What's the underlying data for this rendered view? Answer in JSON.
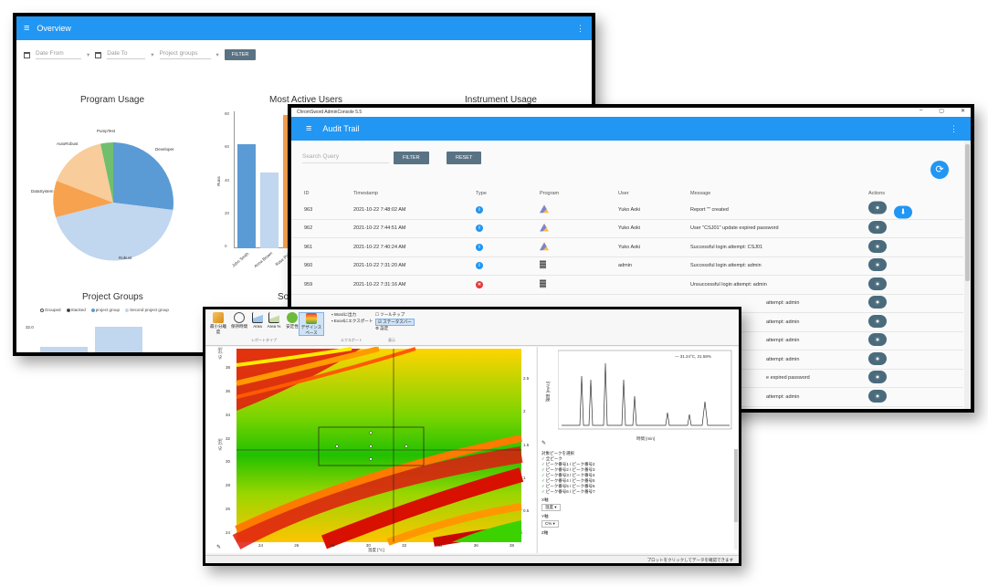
{
  "overview": {
    "title": "Overview",
    "filters": {
      "date_from": "Date From",
      "date_to": "Date To",
      "project_groups": "Project groups",
      "filter_btn": "FILTER"
    },
    "program_usage": {
      "title": "Program Usage",
      "labels": [
        "PumpTest",
        "AutoRobust",
        "Developer",
        "DataSystem",
        "Robust"
      ]
    },
    "most_active_users": {
      "title": "Most Active Users",
      "ylabel": "Runs",
      "xlabels": [
        "John Smith",
        "Anna Brown",
        "Rose Pol"
      ],
      "yticks": [
        "80",
        "60",
        "40",
        "20",
        "0"
      ]
    },
    "instrument_usage": {
      "title": "Instrument Usage"
    },
    "project_groups": {
      "title": "Project Groups",
      "legend": [
        "Grouped",
        "Stacked",
        "project group",
        "Second project group"
      ],
      "ytick": "32.0"
    },
    "solver_title_partial": "Sol"
  },
  "audit": {
    "window_title": "ChromSword AdminConsole 5.5",
    "title": "Audit Trail",
    "search_placeholder": "Search Query",
    "filter_btn": "FILTER",
    "reset_btn": "RESET",
    "columns": {
      "id": "ID",
      "timestamp": "Timestamp",
      "type": "Type",
      "program": "Program",
      "user": "User",
      "message": "Message",
      "actions": "Actions"
    },
    "rows": [
      {
        "id": "963",
        "timestamp": "2021-10-22 7:48:02 AM",
        "type": "info",
        "program": "robust",
        "user": "Yuko Aoki",
        "message": "Report \"\" created",
        "download": true
      },
      {
        "id": "962",
        "timestamp": "2021-10-22 7:44:51 AM",
        "type": "info",
        "program": "robust",
        "user": "Yuko Aoki",
        "message": "User \"CSJ01\" update expired password",
        "download": false
      },
      {
        "id": "961",
        "timestamp": "2021-10-22 7:40:24 AM",
        "type": "info",
        "program": "robust",
        "user": "Yuko Aoki",
        "message": "Successful login attempt: CSJ01",
        "download": false
      },
      {
        "id": "960",
        "timestamp": "2021-10-22 7:31:20 AM",
        "type": "info",
        "program": "server",
        "user": "admin",
        "message": "Successful login attempt: admin",
        "download": false
      },
      {
        "id": "959",
        "timestamp": "2021-10-22 7:31:16 AM",
        "type": "error",
        "program": "server",
        "user": "",
        "message": "Unsuccessful login attempt: admin",
        "download": false
      }
    ],
    "hidden_row_messages": [
      "attempt: admin",
      "attempt: admin",
      "attempt: admin",
      "attempt: admin",
      "e expired password",
      "attempt: admin"
    ]
  },
  "design": {
    "ribbon": {
      "items": [
        "最小分離度",
        "保持時間",
        "Area",
        "Area %",
        "安定性",
        "デザインスペース"
      ],
      "export_items": [
        "Wordに出力",
        "Excelにエクスポート"
      ],
      "view_items": [
        "ツールチップ",
        "ステータスバー",
        "設定"
      ],
      "group_labels": [
        "レポートタイプ",
        "エクスポート",
        "表示"
      ]
    },
    "contour": {
      "ylabel": "tG [分]",
      "xlabel": "温度 [°C]",
      "xticks": [
        "24",
        "26",
        "28",
        "30",
        "32",
        "34",
        "36",
        "38"
      ],
      "yticks": [
        "38",
        "36",
        "34",
        "32",
        "30",
        "28",
        "26",
        "24"
      ],
      "right_ticks": [
        "2.5",
        "2",
        "1.5",
        "1",
        "0.5"
      ]
    },
    "chromatogram": {
      "legend": "— 31.24°C, 31.58%",
      "xlabel": "時間 [min]",
      "ylabel": "強度 [mAU]"
    },
    "peak_panel": {
      "header": "対象ピークを選択",
      "peaks": [
        "全ピーク",
        "ピーク番号1 / ピーク番号2",
        "ピーク番号2 / ピーク番号3",
        "ピーク番号3 / ピーク番号4",
        "ピーク番号4 / ピーク番号5",
        "ピーク番号5 / ピーク番号6",
        "ピーク番号6 / ピーク番号7"
      ],
      "x_label": "X軸",
      "x_value": "温度",
      "y_label": "Y軸",
      "y_value": "C%",
      "z_label": "Z軸"
    },
    "status_text": "プロットをクリックしてデータを確認できます"
  },
  "colors": {
    "appbar": "#2196f3",
    "button": "#5a7384",
    "eye": "#4a6b7c"
  }
}
